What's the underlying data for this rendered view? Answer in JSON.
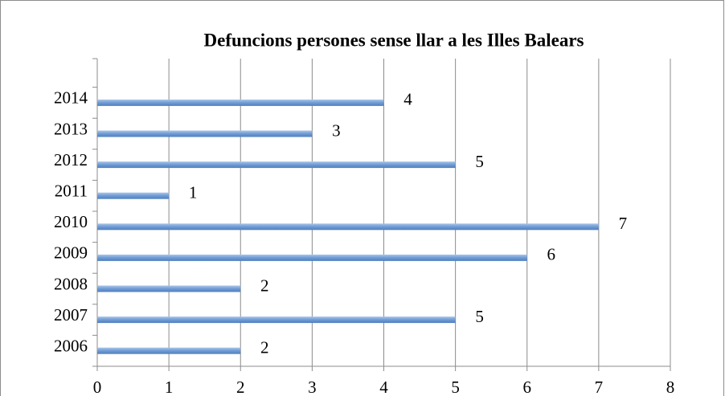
{
  "chart_data": {
    "type": "bar",
    "orientation": "horizontal",
    "title": "Defuncions persones sense llar a les Illes Balears",
    "categories": [
      "2006",
      "2007",
      "2008",
      "2009",
      "2010",
      "2011",
      "2012",
      "2013",
      "2014"
    ],
    "values": [
      2,
      5,
      2,
      6,
      7,
      1,
      5,
      3,
      4
    ],
    "color": "#7da7d9",
    "xlim": [
      0,
      8
    ],
    "xticks": [
      0,
      1,
      2,
      3,
      4,
      5,
      6,
      7,
      8
    ],
    "grid": true
  }
}
